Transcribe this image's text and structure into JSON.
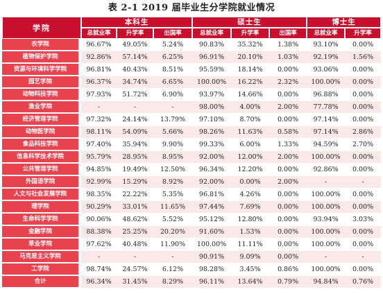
{
  "title": "表 2-1    2019 届毕业生分学院就业情况",
  "header": {
    "college": "学院",
    "groups": [
      "本科生",
      "硕士生",
      "博士生"
    ],
    "sub_cols": [
      "总就业率",
      "升学率",
      "出国率"
    ]
  },
  "rows": [
    {
      "name": "农学院",
      "values": [
        "96.67%",
        "49.05%",
        "5.24%",
        "90.83%",
        "35.32%",
        "1.38%",
        "93.10%",
        "0.00%"
      ]
    },
    {
      "name": "植物保护学院",
      "values": [
        "92.86%",
        "57.14%",
        "6.25%",
        "96.91%",
        "20.10%",
        "1.03%",
        "92.19%",
        "1.56%"
      ]
    },
    {
      "name": "资源与环境科学学院",
      "values": [
        "96.81%",
        "40.43%",
        "8.51%",
        "95.59%",
        "18.14%",
        "0.00%",
        "93.06%",
        "0.00%"
      ]
    },
    {
      "name": "园艺学院",
      "values": [
        "96.37%",
        "34.74%",
        "6.65%",
        "100.00%",
        "16.22%",
        "2.32%",
        "100.00%",
        "0.00%"
      ]
    },
    {
      "name": "动物科技学院",
      "values": [
        "97.93%",
        "51.72%",
        "6.90%",
        "93.97%",
        "14.66%",
        "0.00%",
        "96.88%",
        "0.00%"
      ]
    },
    {
      "name": "渔业学院",
      "values": [
        "-",
        "-",
        "-",
        "98.00%",
        "4.00%",
        "2.00%",
        "77.78%",
        "0.00%"
      ]
    },
    {
      "name": "经济管理学院",
      "values": [
        "97.32%",
        "24.14%",
        "13.79%",
        "97.10%",
        "8.70%",
        "0.00%",
        "97.14%",
        "0.00%"
      ]
    },
    {
      "name": "动物医学院",
      "values": [
        "98.11%",
        "54.09%",
        "5.66%",
        "98.26%",
        "11.63%",
        "0.58%",
        "97.14%",
        "2.86%"
      ]
    },
    {
      "name": "食品科技学院",
      "values": [
        "97.40%",
        "35.94%",
        "9.90%",
        "99.33%",
        "6.00%",
        "1.33%",
        "94.59%",
        "2.70%"
      ]
    },
    {
      "name": "信息科学技术学院",
      "values": [
        "95.79%",
        "28.95%",
        "8.95%",
        "92.00%",
        "12.00%",
        "2.00%",
        "100.00%",
        "0.00%"
      ]
    },
    {
      "name": "公共管理学院",
      "values": [
        "94.85%",
        "19.49%",
        "12.50%",
        "96.34%",
        "12.20%",
        "0.00%",
        "92.86%",
        "0.00%"
      ]
    },
    {
      "name": "外国语学院",
      "values": [
        "92.99%",
        "15.29%",
        "8.92%",
        "92.00%",
        "0.00%",
        "2.00%",
        "-",
        "-"
      ]
    },
    {
      "name": "人文与社会发展学院",
      "values": [
        "98.35%",
        "22.22%",
        "5.35%",
        "96.81%",
        "4.26%",
        "0.00%",
        "100.00%",
        "0.00%"
      ]
    },
    {
      "name": "理学院",
      "values": [
        "90.29%",
        "33.01%",
        "11.65%",
        "97.44%",
        "7.69%",
        "0.00%",
        "100.00%",
        "0.00%"
      ]
    },
    {
      "name": "生命科学学院",
      "values": [
        "90.06%",
        "48.62%",
        "5.52%",
        "95.12%",
        "12.80%",
        "0.00%",
        "93.94%",
        "3.03%"
      ]
    },
    {
      "name": "金融学院",
      "values": [
        "88.38%",
        "25.25%",
        "20.20%",
        "91.60%",
        "1.53%",
        "0.00%",
        "100.00%",
        "0.00%"
      ]
    },
    {
      "name": "草业学院",
      "values": [
        "97.62%",
        "40.48%",
        "11.90%",
        "100.00%",
        "11.11%",
        "0.00%",
        "100.00%",
        "0.00%"
      ]
    },
    {
      "name": "马克思主义学院",
      "values": [
        "-",
        "-",
        "-",
        "90.91%",
        "9.09%",
        "0.00%",
        "-",
        "-"
      ]
    },
    {
      "name": "工学院",
      "values": [
        "98.74%",
        "24.57%",
        "6.12%",
        "98.28%",
        "3.45%",
        "0.86%",
        "100.00%",
        "0.00%"
      ]
    },
    {
      "name": "合计",
      "values": [
        "96.34%",
        "31.45%",
        "8.29%",
        "96.11%",
        "13.64%",
        "0.79%",
        "94.84%",
        "0.76%"
      ]
    }
  ],
  "colors": {
    "header_red": "#c8102e",
    "label_red": "#e8424f",
    "band_pink": "#fbe9e9"
  }
}
